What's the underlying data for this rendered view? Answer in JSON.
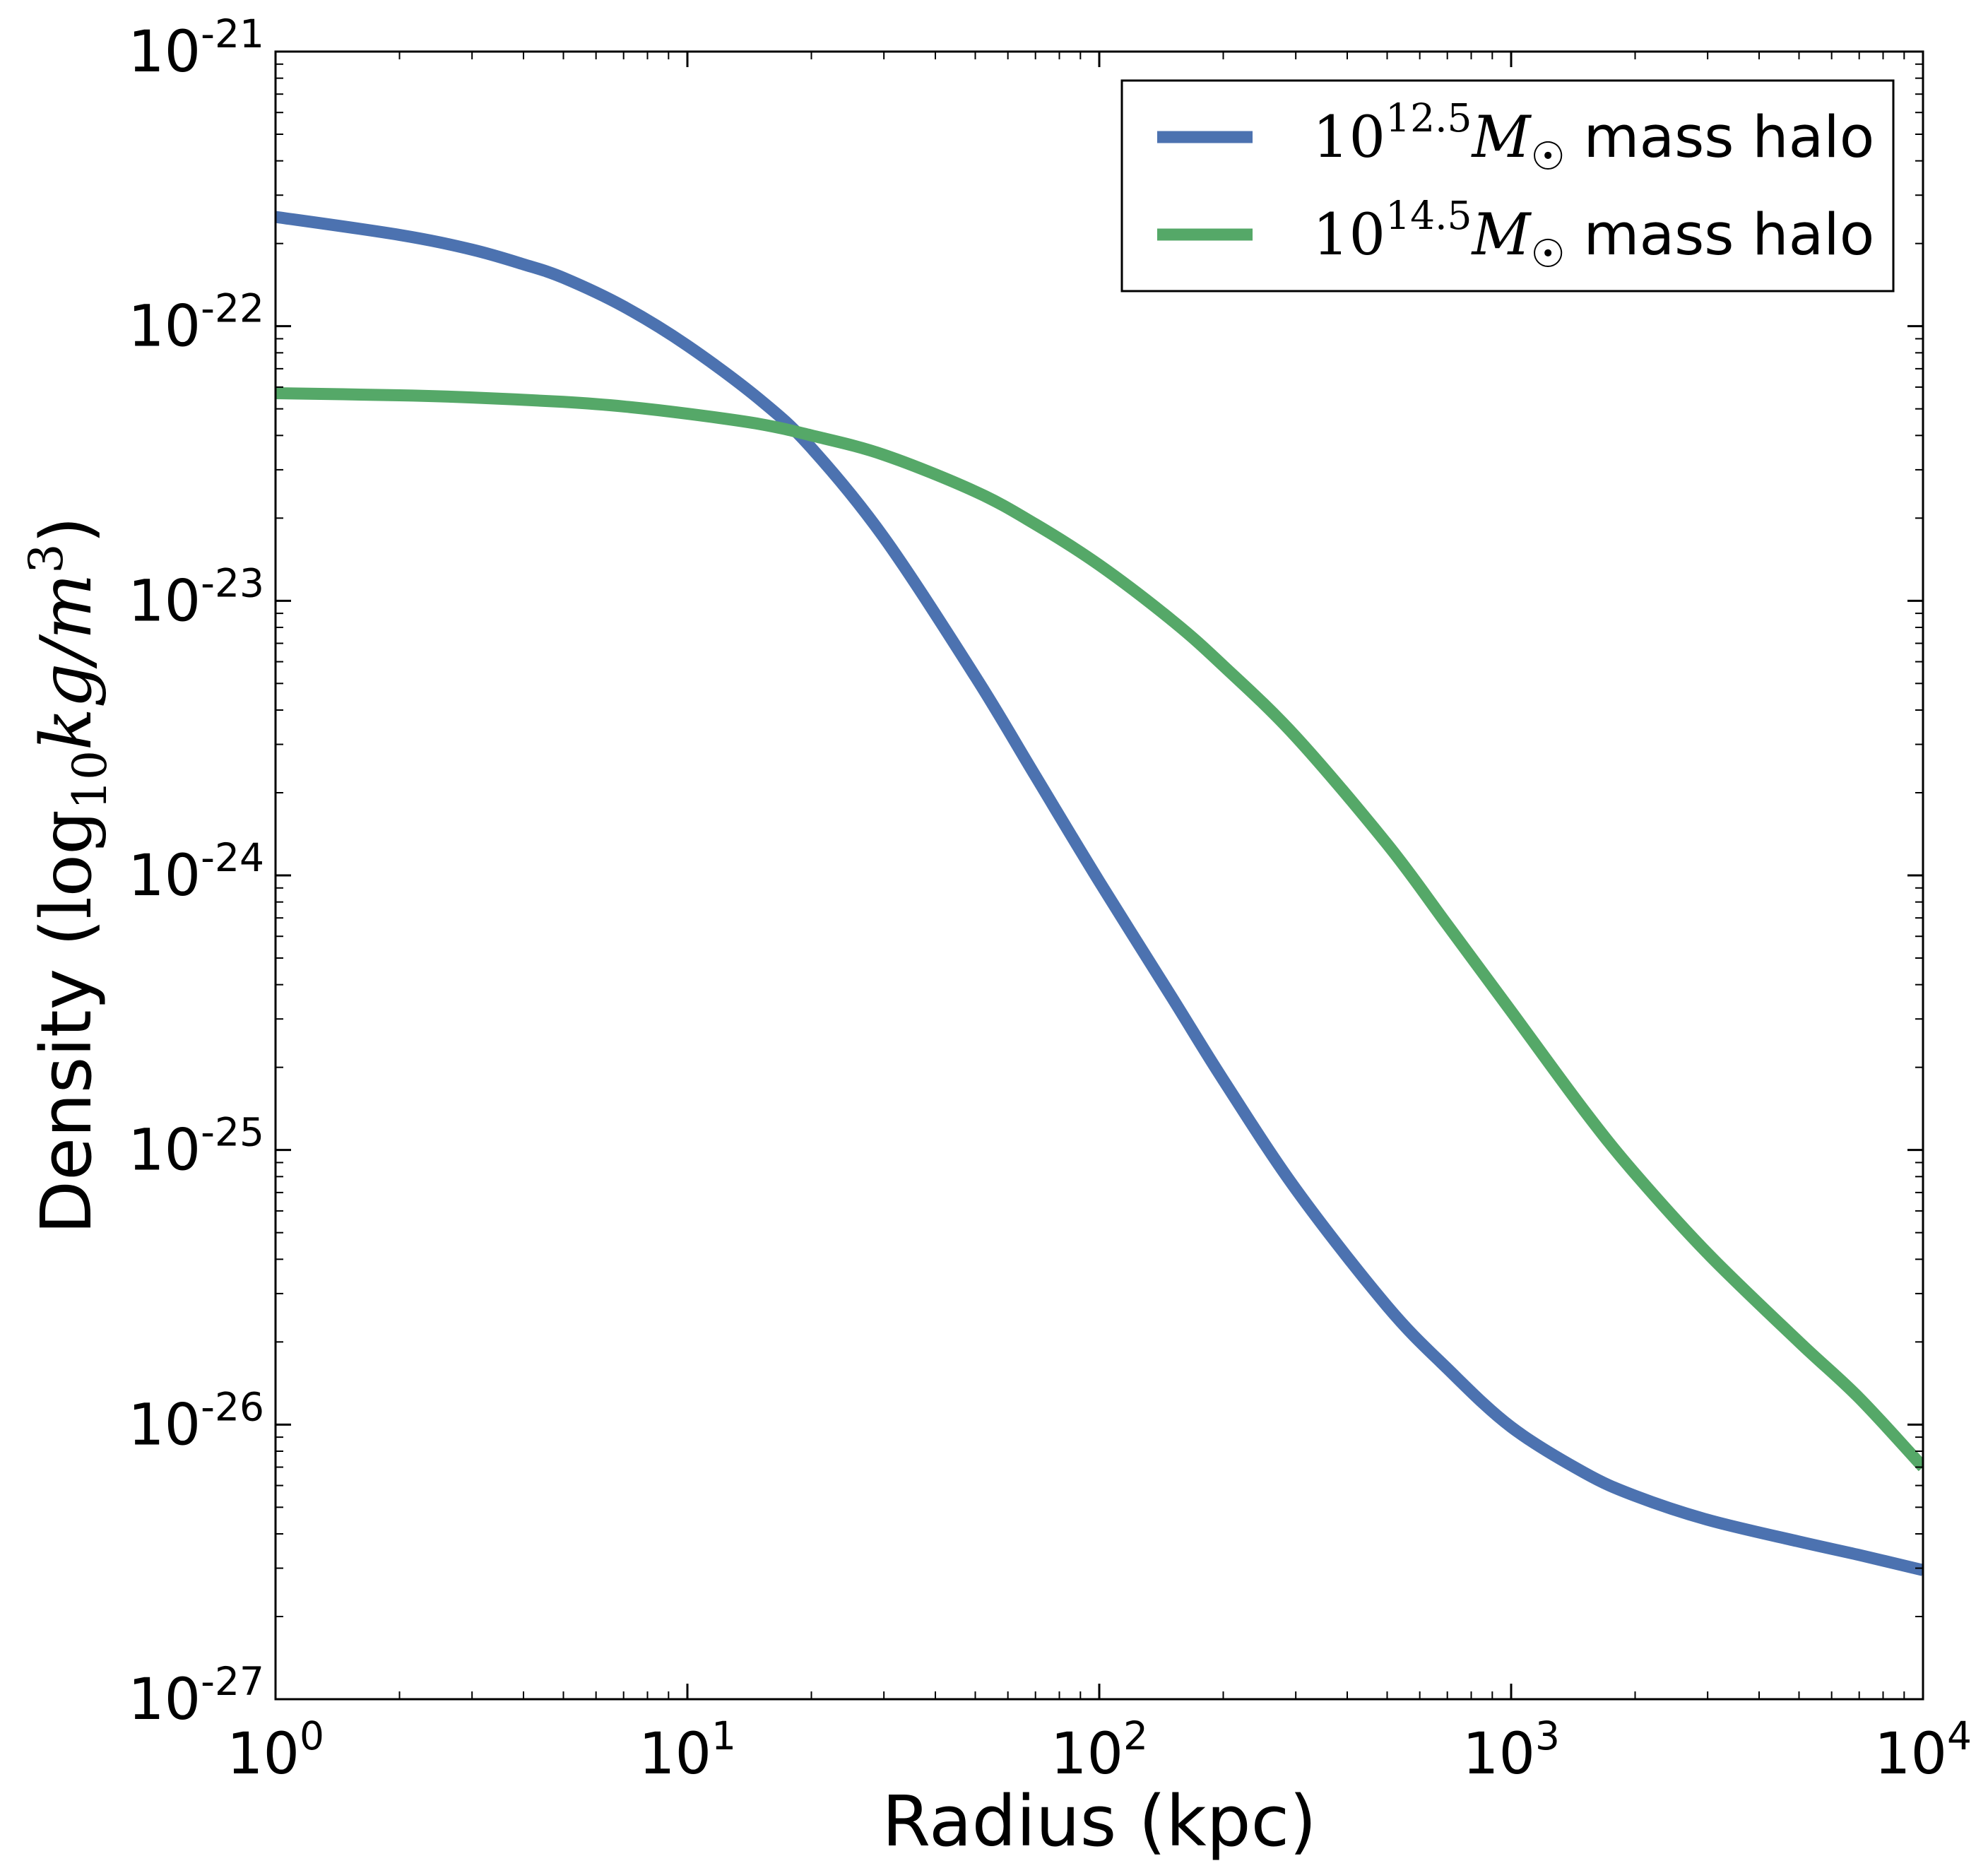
{
  "chart_data": {
    "type": "line",
    "xlabel": "Radius (kpc)",
    "ylabel": {
      "prefix": "Density (",
      "log": "log",
      "log_sub": "10",
      "unit": "kg/m",
      "unit_sup": "3",
      "suffix": ")"
    },
    "xscale": "log",
    "yscale": "log",
    "xlim": [
      1,
      10000
    ],
    "ylim": [
      1e-27,
      1e-21
    ],
    "xticks": [
      {
        "base": "10",
        "exp": "0",
        "value": 1
      },
      {
        "base": "10",
        "exp": "1",
        "value": 10
      },
      {
        "base": "10",
        "exp": "2",
        "value": 100
      },
      {
        "base": "10",
        "exp": "3",
        "value": 1000
      },
      {
        "base": "10",
        "exp": "4",
        "value": 10000
      }
    ],
    "yticks": [
      {
        "base": "10",
        "exp": "-21",
        "value": 1e-21
      },
      {
        "base": "10",
        "exp": "-22",
        "value": 1e-22
      },
      {
        "base": "10",
        "exp": "-23",
        "value": 1e-23
      },
      {
        "base": "10",
        "exp": "-24",
        "value": 1e-24
      },
      {
        "base": "10",
        "exp": "-25",
        "value": 1e-25
      },
      {
        "base": "10",
        "exp": "-26",
        "value": 1e-26
      },
      {
        "base": "10",
        "exp": "-27",
        "value": 1e-27
      }
    ],
    "grid": false,
    "legend": "top-right",
    "series": [
      {
        "name": "10^12.5 M☉ mass halo",
        "legend": {
          "base": "10",
          "exp": "12.5",
          "sym": "M",
          "sub": "☉",
          "text": "mass halo"
        },
        "color": "#4c72b0",
        "x": [
          1,
          2,
          3,
          4,
          5,
          7,
          10,
          15,
          20,
          30,
          50,
          70,
          100,
          150,
          200,
          300,
          500,
          700,
          1000,
          1500,
          2000,
          3000,
          5000,
          7000,
          10000
        ],
        "y": [
          2.5e-22,
          2.15e-22,
          1.9e-22,
          1.68e-22,
          1.5e-22,
          1.18e-22,
          8.5e-23,
          5.4e-23,
          3.6e-23,
          1.7e-23,
          5.3e-24,
          2.3e-24,
          9.5e-25,
          3.6e-25,
          1.8e-25,
          7.2e-26,
          2.7e-26,
          1.6e-26,
          9.8e-27,
          6.7e-27,
          5.5e-27,
          4.5e-27,
          3.75e-27,
          3.35e-27,
          2.95e-27
        ]
      },
      {
        "name": "10^14.5 M☉ mass halo",
        "legend": {
          "base": "10",
          "exp": "14.5",
          "sym": "M",
          "sub": "☉",
          "text": "mass halo"
        },
        "color": "#55a868",
        "x": [
          1,
          2,
          3,
          5,
          7,
          10,
          15,
          20,
          30,
          50,
          70,
          100,
          150,
          200,
          300,
          500,
          700,
          1000,
          1500,
          2000,
          3000,
          5000,
          7000,
          10000
        ],
        "y": [
          5.7e-23,
          5.6e-23,
          5.5e-23,
          5.3e-23,
          5.1e-23,
          4.8e-23,
          4.4e-23,
          4e-23,
          3.4e-23,
          2.5e-23,
          1.9e-23,
          1.35e-23,
          8.5e-24,
          5.8e-24,
          3.2e-24,
          1.3e-24,
          6.6e-25,
          3.2e-25,
          1.4e-25,
          8.2e-26,
          4.2e-26,
          2e-26,
          1.25e-26,
          7e-27
        ]
      }
    ]
  }
}
